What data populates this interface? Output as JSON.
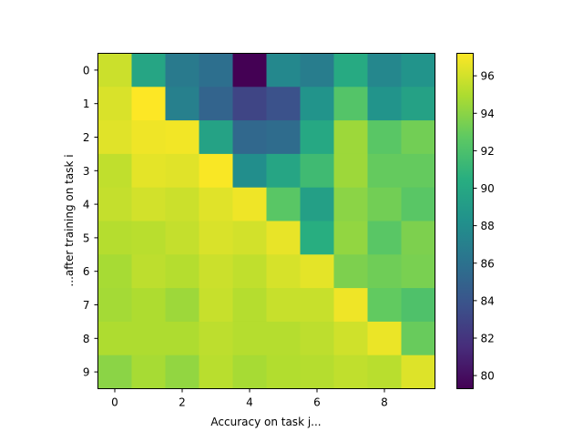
{
  "chart_data": {
    "type": "heatmap",
    "title": "",
    "xlabel": "Accuracy on task j...",
    "ylabel": "...after training on task i",
    "colormap": "viridis",
    "rows": 10,
    "cols": 10,
    "x_ticks": [
      0,
      2,
      4,
      6,
      8
    ],
    "y_ticks": [
      0,
      1,
      2,
      3,
      4,
      5,
      6,
      7,
      8,
      9
    ],
    "colorbar": {
      "min": 79.3,
      "max": 97.2,
      "ticks": [
        80,
        82,
        84,
        86,
        88,
        90,
        92,
        94,
        96
      ]
    },
    "matrix": [
      [
        95.8,
        89.8,
        86.6,
        85.8,
        79.3,
        87.6,
        86.8,
        90.2,
        87.5,
        88.5
      ],
      [
        96.2,
        97.2,
        87.0,
        85.0,
        83.0,
        83.8,
        88.5,
        92.3,
        88.5,
        89.5
      ],
      [
        96.4,
        96.8,
        96.9,
        89.6,
        85.3,
        85.6,
        90.0,
        94.5,
        92.5,
        93.3
      ],
      [
        95.5,
        96.5,
        96.4,
        97.1,
        88.0,
        89.8,
        91.5,
        94.5,
        92.9,
        92.9
      ],
      [
        95.6,
        96.0,
        95.8,
        96.4,
        96.8,
        92.5,
        89.3,
        94.0,
        93.3,
        92.5
      ],
      [
        95.2,
        95.3,
        95.6,
        96.2,
        96.0,
        96.6,
        90.5,
        94.2,
        92.5,
        93.6
      ],
      [
        94.8,
        95.4,
        95.2,
        95.8,
        95.5,
        96.1,
        96.5,
        93.6,
        93.2,
        93.5
      ],
      [
        94.7,
        95.0,
        94.5,
        95.7,
        95.2,
        95.7,
        95.7,
        96.8,
        92.8,
        92.1
      ],
      [
        95.0,
        95.0,
        95.0,
        95.4,
        95.2,
        95.2,
        95.4,
        95.9,
        96.7,
        93.0
      ],
      [
        94.0,
        94.8,
        94.2,
        95.3,
        94.8,
        95.1,
        95.2,
        95.5,
        95.3,
        96.3
      ]
    ]
  }
}
